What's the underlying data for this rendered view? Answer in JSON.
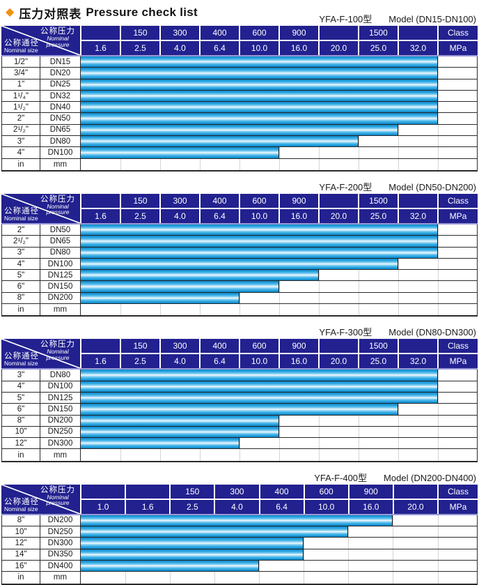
{
  "title": {
    "diamond": "◆",
    "zh": "压力对照表",
    "en": "Pressure check list"
  },
  "corner": {
    "pressure_zh": "公称压力",
    "pressure_en1": "Nominal",
    "pressure_en2": "pressure",
    "size_zh": "公称通径",
    "size_en": "Nominal size"
  },
  "colors": {
    "header_bg": "#22218f",
    "header_text": "#ffffff",
    "header_underline": "#9a99d6",
    "grid_line": "#2a2a2a",
    "bar_edge": "#0a7fc4",
    "bar_mid": "#36ade5",
    "bar_center": "#f3fbff",
    "title_diamond": "#f0920e"
  },
  "tables": [
    {
      "model_zh": "YFA-F-100型",
      "model_en": "Model (DN15-DN100)",
      "class_row": [
        "",
        "150",
        "300",
        "400",
        "600",
        "900",
        "",
        "1500",
        ""
      ],
      "class_label": "Class",
      "mpa_row": [
        "1.6",
        "2.5",
        "4.0",
        "6.4",
        "10.0",
        "16.0",
        "20.0",
        "25.0",
        "32.0"
      ],
      "mpa_label": "MPa",
      "rows": [
        {
          "inch": "1/2\"",
          "dn": "DN15",
          "bars": 9
        },
        {
          "inch": "3/4\"",
          "dn": "DN20",
          "bars": 9
        },
        {
          "inch": "1\"",
          "dn": "DN25",
          "bars": 9
        },
        {
          "inch": "1¹/₄\"",
          "dn": "DN32",
          "bars": 9
        },
        {
          "inch": "1¹/₂\"",
          "dn": "DN40",
          "bars": 9
        },
        {
          "inch": "2\"",
          "dn": "DN50",
          "bars": 9
        },
        {
          "inch": "2¹/₂\"",
          "dn": "DN65",
          "bars": 8
        },
        {
          "inch": "3\"",
          "dn": "DN80",
          "bars": 7
        },
        {
          "inch": "4\"",
          "dn": "DN100",
          "bars": 5
        }
      ],
      "unit_row": {
        "inch": "in",
        "dn": "mm"
      }
    },
    {
      "model_zh": "YFA-F-200型",
      "model_en": "Model (DN50-DN200)",
      "class_row": [
        "",
        "150",
        "300",
        "400",
        "600",
        "900",
        "",
        "1500",
        ""
      ],
      "class_label": "Class",
      "mpa_row": [
        "1.6",
        "2.5",
        "4.0",
        "6.4",
        "10.0",
        "16.0",
        "20.0",
        "25.0",
        "32.0"
      ],
      "mpa_label": "MPa",
      "rows": [
        {
          "inch": "2\"",
          "dn": "DN50",
          "bars": 9
        },
        {
          "inch": "2¹/₂\"",
          "dn": "DN65",
          "bars": 9
        },
        {
          "inch": "3\"",
          "dn": "DN80",
          "bars": 9
        },
        {
          "inch": "4\"",
          "dn": "DN100",
          "bars": 8
        },
        {
          "inch": "5\"",
          "dn": "DN125",
          "bars": 6
        },
        {
          "inch": "6\"",
          "dn": "DN150",
          "bars": 5
        },
        {
          "inch": "8\"",
          "dn": "DN200",
          "bars": 4
        }
      ],
      "unit_row": {
        "inch": "in",
        "dn": "mm"
      }
    },
    {
      "model_zh": "YFA-F-300型",
      "model_en": "Model (DN80-DN300)",
      "class_row": [
        "",
        "150",
        "300",
        "400",
        "600",
        "900",
        "",
        "1500",
        ""
      ],
      "class_label": "Class",
      "mpa_row": [
        "1.6",
        "2.5",
        "4.0",
        "6.4",
        "10.0",
        "16.0",
        "20.0",
        "25.0",
        "32.0"
      ],
      "mpa_label": "MPa",
      "rows": [
        {
          "inch": "3\"",
          "dn": "DN80",
          "bars": 9
        },
        {
          "inch": "4\"",
          "dn": "DN100",
          "bars": 9
        },
        {
          "inch": "5\"",
          "dn": "DN125",
          "bars": 9
        },
        {
          "inch": "6\"",
          "dn": "DN150",
          "bars": 8
        },
        {
          "inch": "8\"",
          "dn": "DN200",
          "bars": 5
        },
        {
          "inch": "10\"",
          "dn": "DN250",
          "bars": 5
        },
        {
          "inch": "12\"",
          "dn": "DN300",
          "bars": 4
        }
      ],
      "unit_row": {
        "inch": "in",
        "dn": "mm"
      }
    },
    {
      "model_zh": "YFA-F-400型",
      "model_en": "Model (DN200-DN400)",
      "class_row": [
        "",
        "",
        "150",
        "300",
        "400",
        "600",
        "900",
        ""
      ],
      "class_label": "Class",
      "mpa_row": [
        "1.0",
        "1.6",
        "2.5",
        "4.0",
        "6.4",
        "10.0",
        "16.0",
        "20.0"
      ],
      "mpa_label": "MPa",
      "rows": [
        {
          "inch": "8\"",
          "dn": "DN200",
          "bars": 7
        },
        {
          "inch": "10\"",
          "dn": "DN250",
          "bars": 6
        },
        {
          "inch": "12\"",
          "dn": "DN300",
          "bars": 5
        },
        {
          "inch": "14\"",
          "dn": "DN350",
          "bars": 5
        },
        {
          "inch": "16\"",
          "dn": "DN400",
          "bars": 4
        }
      ],
      "unit_row": {
        "inch": "in",
        "dn": "mm"
      }
    }
  ],
  "chart_data": [
    {
      "type": "bar",
      "title": "YFA-F-100型 Model (DN15-DN100)",
      "categories": [
        "DN15",
        "DN20",
        "DN25",
        "DN32",
        "DN40",
        "DN50",
        "DN65",
        "DN80",
        "DN100"
      ],
      "values": [
        32.0,
        32.0,
        32.0,
        32.0,
        32.0,
        32.0,
        25.0,
        20.0,
        10.0
      ],
      "xlabel": "Nominal pressure (MPa)",
      "ylabel": "Nominal size",
      "mpa_scale": [
        1.6,
        2.5,
        4.0,
        6.4,
        10.0,
        16.0,
        20.0,
        25.0,
        32.0
      ],
      "class_scale": [
        null,
        150,
        300,
        400,
        600,
        900,
        null,
        1500,
        null
      ],
      "note": "bar = applicable pressure range from 1.6 MPa up to value"
    },
    {
      "type": "bar",
      "title": "YFA-F-200型 Model (DN50-DN200)",
      "categories": [
        "DN50",
        "DN65",
        "DN80",
        "DN100",
        "DN125",
        "DN150",
        "DN200"
      ],
      "values": [
        32.0,
        32.0,
        32.0,
        25.0,
        16.0,
        10.0,
        6.4
      ],
      "xlabel": "Nominal pressure (MPa)",
      "ylabel": "Nominal size",
      "mpa_scale": [
        1.6,
        2.5,
        4.0,
        6.4,
        10.0,
        16.0,
        20.0,
        25.0,
        32.0
      ],
      "class_scale": [
        null,
        150,
        300,
        400,
        600,
        900,
        null,
        1500,
        null
      ],
      "note": "bar = applicable pressure range from 1.6 MPa up to value"
    },
    {
      "type": "bar",
      "title": "YFA-F-300型 Model (DN80-DN300)",
      "categories": [
        "DN80",
        "DN100",
        "DN125",
        "DN150",
        "DN200",
        "DN250",
        "DN300"
      ],
      "values": [
        32.0,
        32.0,
        32.0,
        25.0,
        10.0,
        10.0,
        6.4
      ],
      "xlabel": "Nominal pressure (MPa)",
      "ylabel": "Nominal size",
      "mpa_scale": [
        1.6,
        2.5,
        4.0,
        6.4,
        10.0,
        16.0,
        20.0,
        25.0,
        32.0
      ],
      "class_scale": [
        null,
        150,
        300,
        400,
        600,
        900,
        null,
        1500,
        null
      ],
      "note": "bar = applicable pressure range from 1.6 MPa up to value"
    },
    {
      "type": "bar",
      "title": "YFA-F-400型 Model (DN200-DN400)",
      "categories": [
        "DN200",
        "DN250",
        "DN300",
        "DN350",
        "DN400"
      ],
      "values": [
        16.0,
        10.0,
        6.4,
        6.4,
        4.0
      ],
      "xlabel": "Nominal pressure (MPa)",
      "ylabel": "Nominal size",
      "mpa_scale": [
        1.0,
        1.6,
        2.5,
        4.0,
        6.4,
        10.0,
        16.0,
        20.0
      ],
      "class_scale": [
        null,
        null,
        150,
        300,
        400,
        600,
        900,
        null
      ],
      "note": "bar = applicable pressure range from 1.0 MPa up to value"
    }
  ]
}
